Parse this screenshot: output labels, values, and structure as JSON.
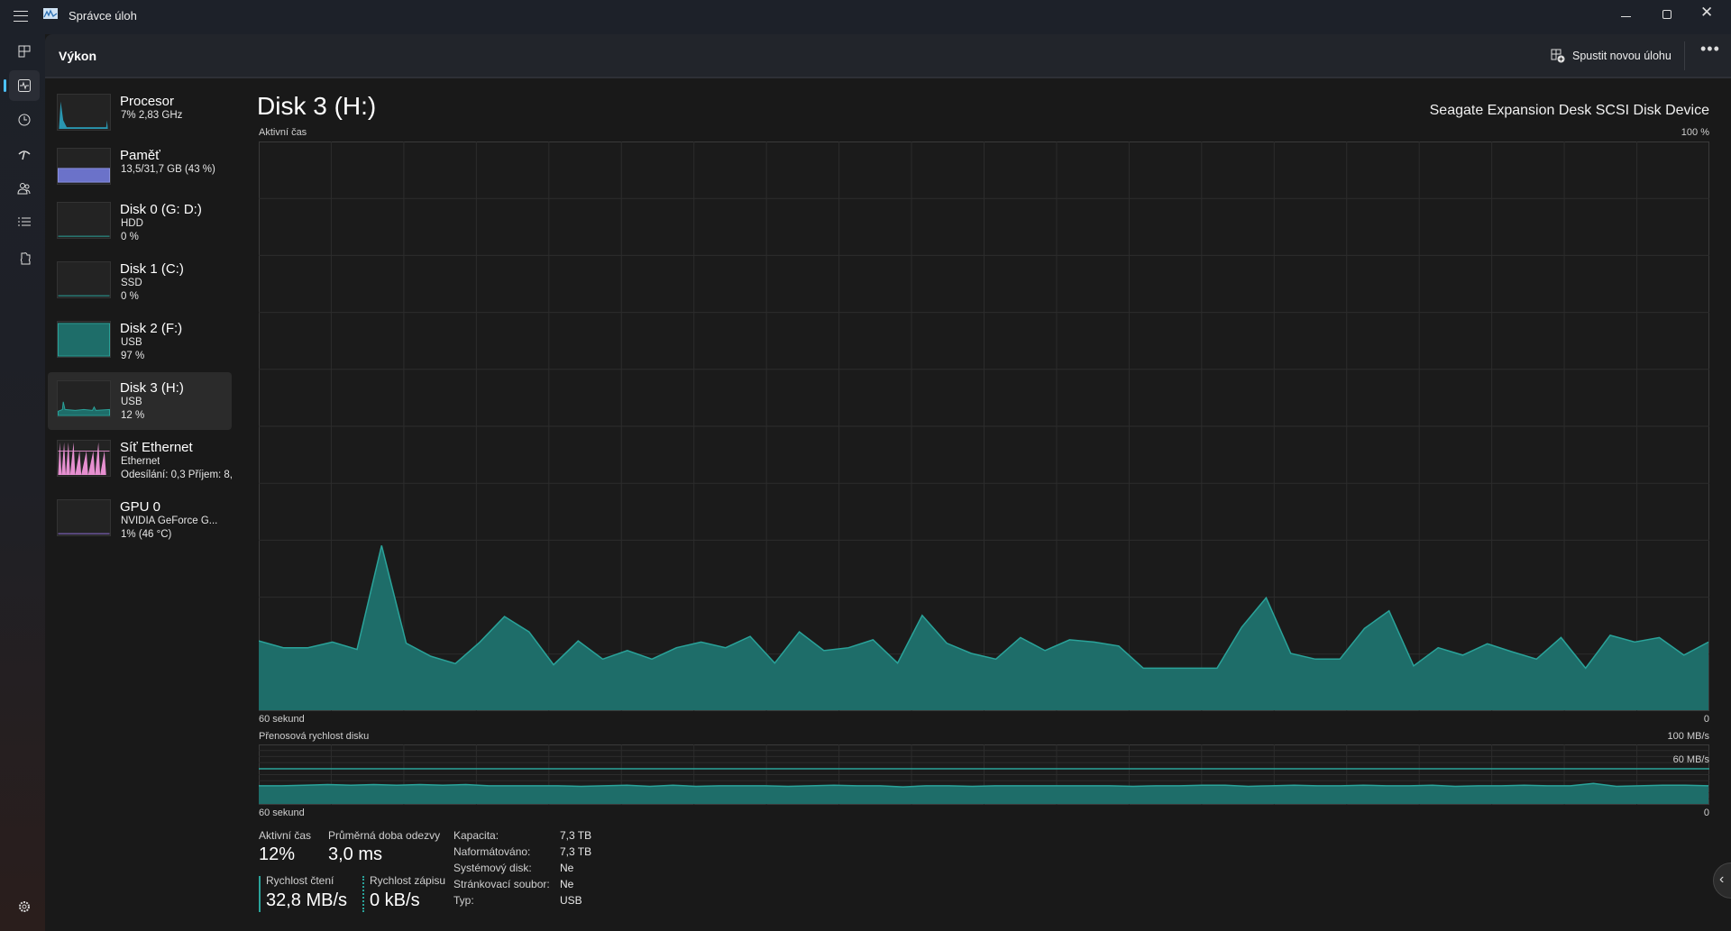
{
  "window": {
    "title": "Správce úloh"
  },
  "header": {
    "page_title": "Výkon",
    "run_new_task": "Spustit novou úlohu"
  },
  "nav": {
    "items": [
      "processes-icon",
      "performance-icon",
      "app-history-icon",
      "startup-icon",
      "users-icon",
      "details-icon",
      "services-icon",
      "settings-icon"
    ]
  },
  "sidebar": {
    "items": [
      {
        "title": "Procesor",
        "line1": "7%  2,83 GHz",
        "line2": ""
      },
      {
        "title": "Paměť",
        "line1": "13,5/31,7 GB (43 %)",
        "line2": ""
      },
      {
        "title": "Disk 0 (G: D:)",
        "line1": "HDD",
        "line2": "0 %"
      },
      {
        "title": "Disk 1 (C:)",
        "line1": "SSD",
        "line2": "0 %"
      },
      {
        "title": "Disk 2 (F:)",
        "line1": "USB",
        "line2": "97 %"
      },
      {
        "title": "Disk 3 (H:)",
        "line1": "USB",
        "line2": "12 %"
      },
      {
        "title": "Síť Ethernet",
        "line1": "Ethernet",
        "line2": "Odesílání: 0,3 Příjem: 8,"
      },
      {
        "title": "GPU 0",
        "line1": "NVIDIA GeForce G...",
        "line2": "1%  (46 °C)"
      }
    ],
    "selected": 5
  },
  "main": {
    "title": "Disk 3 (H:)",
    "device": "Seagate Expansion Desk SCSI Disk Device"
  },
  "colors": {
    "accent": "#4cc2ff",
    "disk_line": "#2aa39a",
    "disk_fill": "#1e6d69",
    "memory": "#6b72c9",
    "network": "#e68fd0",
    "cpu": "#2bb3d3"
  },
  "chart_data": [
    {
      "type": "area",
      "title": "Aktivní čas",
      "ymax_label": "100 %",
      "xlabel_left": "60 sekund",
      "xlabel_right": "0",
      "ylim": [
        0,
        100
      ],
      "x_range_seconds": [
        60,
        0
      ],
      "grid": true,
      "values": [
        12.2,
        11,
        11,
        12,
        10.7,
        29,
        11.8,
        9.5,
        8.2,
        12,
        16.5,
        13.8,
        8,
        12.2,
        9,
        10.5,
        9,
        11,
        12,
        11,
        13,
        8.3,
        13.8,
        10.5,
        11,
        12.4,
        8.3,
        16.7,
        11.8,
        10,
        9,
        12.8,
        10.5,
        12.4,
        12,
        11.3,
        7.4,
        7.4,
        7.4,
        7.4,
        14.6,
        19.8,
        10,
        9,
        9,
        14.4,
        17.5,
        7.8,
        11,
        9.7,
        11.7,
        10.3,
        9,
        12.8,
        7.4,
        13.2,
        12,
        12.8,
        9.7,
        12
      ]
    },
    {
      "type": "area",
      "title": "Přenosová rychlost disku",
      "ymax_label": "100 MB/s",
      "reference_label": "60 MB/s",
      "reference_value": 60,
      "xlabel_left": "60 sekund",
      "xlabel_right": "0",
      "ylim": [
        0,
        100
      ],
      "grid": true,
      "values": [
        31,
        31,
        32,
        33,
        32,
        33,
        32,
        33,
        32,
        33,
        31,
        31,
        31,
        31,
        30,
        31,
        32,
        30,
        32,
        30,
        31,
        31,
        31,
        30,
        31,
        32,
        31,
        31,
        29,
        31,
        31,
        30,
        31,
        31,
        31,
        31,
        31,
        31,
        30,
        31,
        31,
        32,
        32,
        30,
        31,
        32,
        31,
        31,
        32,
        31,
        31,
        32,
        30,
        31,
        31,
        32,
        31,
        31,
        35,
        30,
        31,
        32,
        32,
        31
      ]
    }
  ],
  "stats": {
    "active_time_label": "Aktivní čas",
    "active_time": "12%",
    "response_label": "Průměrná doba odezvy",
    "response": "3,0 ms",
    "read_label": "Rychlost čtení",
    "read": "32,8 MB/s",
    "write_label": "Rychlost zápisu",
    "write": "0 kB/s"
  },
  "properties": [
    {
      "label": "Kapacita:",
      "value": "7,3 TB"
    },
    {
      "label": "Naformátováno:",
      "value": "7,3 TB"
    },
    {
      "label": "Systémový disk:",
      "value": "Ne"
    },
    {
      "label": "Stránkovací soubor:",
      "value": "Ne"
    },
    {
      "label": "Typ:",
      "value": "USB"
    }
  ]
}
